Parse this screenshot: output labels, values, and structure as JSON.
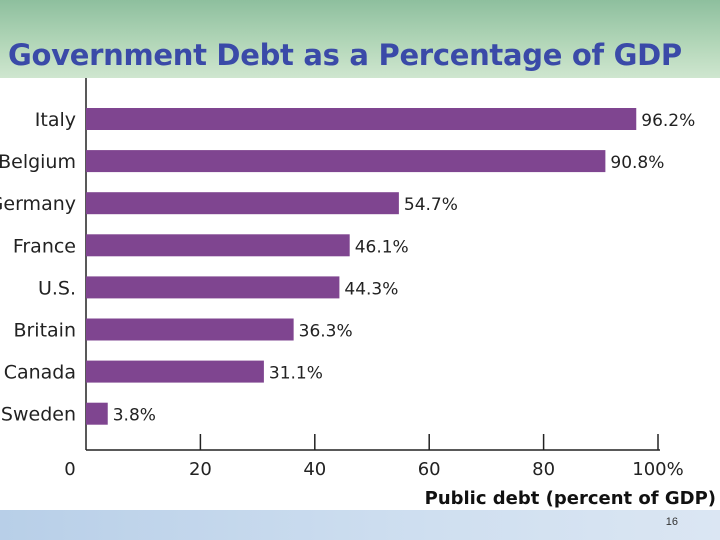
{
  "slide": {
    "title": "Government Debt as a Percentage of GDP",
    "page_number": "16"
  },
  "chart_data": {
    "type": "bar",
    "orientation": "horizontal",
    "categories": [
      "Italy",
      "Belgium",
      "Germany",
      "France",
      "U.S.",
      "Britain",
      "Canada",
      "Sweden"
    ],
    "values": [
      96.2,
      90.8,
      54.7,
      46.1,
      44.3,
      36.3,
      31.1,
      3.8
    ],
    "value_labels": [
      "96.2%",
      "90.8%",
      "54.7%",
      "46.1%",
      "44.3%",
      "36.3%",
      "31.1%",
      "3.8%"
    ],
    "xlabel": "Public debt (percent of GDP)",
    "x_ticks": [
      0,
      20,
      40,
      60,
      80,
      100
    ],
    "x_tick_labels": [
      "0",
      "20",
      "40",
      "60",
      "80",
      "100%"
    ],
    "xlim": [
      0,
      100
    ],
    "grid": false,
    "bar_color": "#7f4590"
  }
}
